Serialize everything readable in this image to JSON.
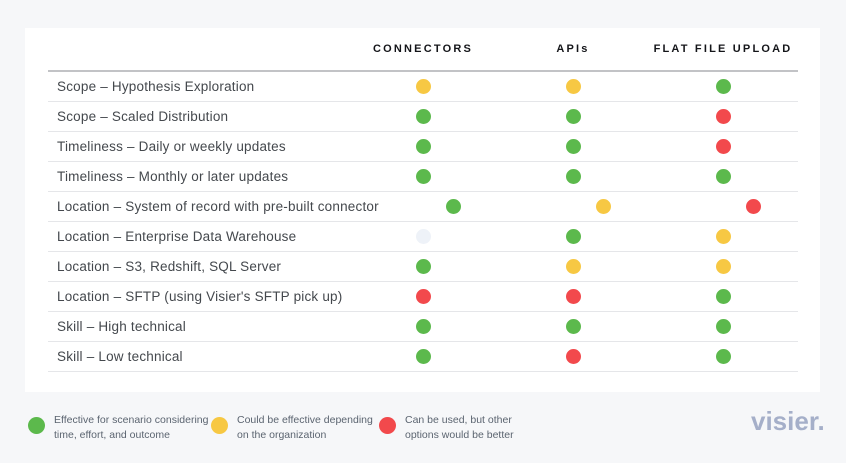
{
  "chart_data": {
    "type": "table",
    "columns": [
      "CONNECTORS",
      "APIs",
      "FLAT FILE UPLOAD"
    ],
    "rows": [
      {
        "label": "Scope – Hypothesis Exploration",
        "ratings": [
          "yellow",
          "yellow",
          "green"
        ]
      },
      {
        "label": "Scope – Scaled Distribution",
        "ratings": [
          "green",
          "green",
          "red"
        ]
      },
      {
        "label": "Timeliness – Daily or weekly updates",
        "ratings": [
          "green",
          "green",
          "red"
        ]
      },
      {
        "label": "Timeliness – Monthly or later updates",
        "ratings": [
          "green",
          "green",
          "green"
        ]
      },
      {
        "label": "Location – System of record with pre-built connector",
        "ratings": [
          "green",
          "yellow",
          "red"
        ]
      },
      {
        "label": "Location – Enterprise Data Warehouse",
        "ratings": [
          "none",
          "green",
          "yellow"
        ]
      },
      {
        "label": "Location – S3, Redshift, SQL Server",
        "ratings": [
          "green",
          "yellow",
          "yellow"
        ]
      },
      {
        "label": "Location – SFTP (using Visier's SFTP pick up)",
        "ratings": [
          "red",
          "red",
          "green"
        ]
      },
      {
        "label": "Skill – High technical",
        "ratings": [
          "green",
          "green",
          "green"
        ]
      },
      {
        "label": "Skill – Low technical",
        "ratings": [
          "green",
          "red",
          "green"
        ]
      }
    ],
    "legend": [
      {
        "color_key": "green",
        "label": "Effective for scenario considering\ntime, effort, and outcome"
      },
      {
        "color_key": "yellow",
        "label": "Could be effective depending\non the organization"
      },
      {
        "color_key": "red",
        "label": "Can be used, but other\noptions would be better"
      }
    ],
    "rating_colors": {
      "green": "#5CB94C",
      "yellow": "#F7C843",
      "red": "#F2494C",
      "none": "#EEF2F8"
    },
    "legend_position": "bottom-left",
    "grid": true
  },
  "footer": {
    "logo_text": "visier."
  }
}
